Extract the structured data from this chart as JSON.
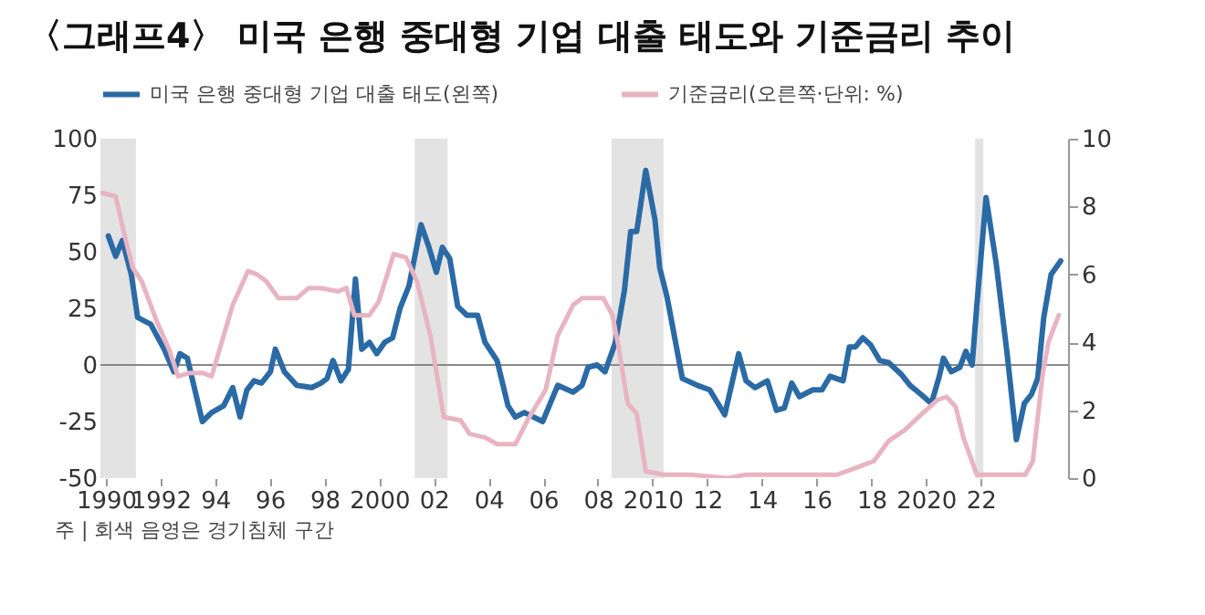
{
  "chart_data": {
    "type": "line",
    "title": "〈그래프4〉 미국 은행 중대형 기업 대출 태도와 기준금리 추이",
    "annotations": [
      "주 | 회색 음영은 경기침체 구간"
    ],
    "xlim": [
      1989.8,
      2025.2
    ],
    "xticks": [
      {
        "value": 1990,
        "label": "1990"
      },
      {
        "value": 1992,
        "label": "1992"
      },
      {
        "value": 1994,
        "label": "94"
      },
      {
        "value": 1996,
        "label": "96"
      },
      {
        "value": 1998,
        "label": "98"
      },
      {
        "value": 2000,
        "label": "2000"
      },
      {
        "value": 2002,
        "label": "02"
      },
      {
        "value": 2004,
        "label": "04"
      },
      {
        "value": 2006,
        "label": "06"
      },
      {
        "value": 2008,
        "label": "08"
      },
      {
        "value": 2010,
        "label": "2010"
      },
      {
        "value": 2012,
        "label": "12"
      },
      {
        "value": 2014,
        "label": "14"
      },
      {
        "value": 2016,
        "label": "16"
      },
      {
        "value": 2018,
        "label": "18"
      },
      {
        "value": 2020,
        "label": "2020"
      },
      {
        "value": 2022,
        "label": "22"
      }
    ],
    "ylim": [
      -50,
      100
    ],
    "yticks": [
      -50,
      -25,
      0,
      25,
      50,
      75,
      100
    ],
    "y2lim": [
      0,
      10
    ],
    "y2ticks": [
      0,
      2,
      4,
      6,
      8,
      10
    ],
    "legend": "top",
    "grid": false,
    "line_style": "solid",
    "ref_lines": [
      {
        "axis": "y",
        "value": 0,
        "color": "#888888"
      }
    ],
    "bands": [
      {
        "axis": "x",
        "from": 1989.8,
        "to": 1991.1,
        "color": "#e3e3e3"
      },
      {
        "axis": "x",
        "from": 2001.3,
        "to": 2002.5,
        "color": "#e3e3e3"
      },
      {
        "axis": "x",
        "from": 2008.5,
        "to": 2010.4,
        "color": "#e3e3e3"
      },
      {
        "axis": "x",
        "from": 2021.8,
        "to": 2022.1,
        "color": "#e3e3e3"
      }
    ],
    "series": [
      {
        "name": "미국 은행 중대형 기업 대출 태도(왼쪽)",
        "color": "#2a6aa5",
        "x": [
          1990.09,
          1990.36,
          1990.6,
          1990.93,
          1991.16,
          1991.64,
          1992.13,
          1992.49,
          1992.71,
          1992.98,
          1993.53,
          1993.87,
          1994.31,
          1994.64,
          1994.91,
          1995.16,
          1995.42,
          1995.69,
          1996.02,
          1996.2,
          1996.53,
          1996.98,
          1997.53,
          1997.87,
          1998.09,
          1998.31,
          1998.6,
          1998.87,
          1999.13,
          1999.36,
          1999.64,
          1999.91,
          2000.2,
          2000.49,
          2000.76,
          2001.09,
          2001.53,
          2001.82,
          2002.09,
          2002.31,
          2002.58,
          2002.87,
          2003.2,
          2003.6,
          2003.87,
          2004.31,
          2004.71,
          2004.98,
          2005.31,
          2005.98,
          2006.53,
          2007.09,
          2007.42,
          2007.64,
          2007.97,
          2008.26,
          2008.64,
          2008.97,
          2009.2,
          2009.42,
          2009.75,
          2010.09,
          2010.26,
          2010.53,
          2011.09,
          2011.64,
          2012.09,
          2012.64,
          2013.15,
          2013.42,
          2013.75,
          2014.2,
          2014.53,
          2014.82,
          2015.09,
          2015.37,
          2015.86,
          2016.2,
          2016.49,
          2016.97,
          2017.2,
          2017.42,
          2017.69,
          2017.97,
          2018.31,
          2018.64,
          2019.09,
          2019.42,
          2019.82,
          2020.2,
          2020.49,
          2020.64,
          2020.93,
          2021.24,
          2021.46,
          2021.69,
          2021.86,
          2022.2,
          2022.57,
          2022.97,
          2023.31,
          2023.6,
          2023.86,
          2024.09,
          2024.31,
          2024.58,
          2024.93
        ],
        "values": [
          57,
          48,
          55,
          40,
          21,
          18,
          7,
          -3,
          5,
          3,
          -25,
          -21,
          -18,
          -10,
          -23,
          -11,
          -7,
          -8,
          -3,
          7,
          -3,
          -9,
          -10,
          -8,
          -6,
          2,
          -7,
          -2,
          38,
          7,
          10,
          5,
          10,
          12,
          25,
          35,
          62,
          52,
          41,
          52,
          47,
          26,
          22,
          22,
          10,
          2,
          -18,
          -23,
          -21,
          -25,
          -9,
          -12,
          -9,
          -1,
          0,
          -3,
          10,
          33,
          59,
          59,
          86,
          64,
          43,
          30,
          -6,
          -9,
          -11,
          -22,
          5,
          -7,
          -10,
          -7,
          -20,
          -19,
          -8,
          -14,
          -11,
          -11,
          -5,
          -7,
          8,
          8,
          12,
          9,
          2,
          1,
          -4,
          -9,
          -13,
          -17,
          -5,
          3,
          -3,
          -1,
          6,
          0,
          26,
          74,
          45,
          5,
          -33,
          -17,
          -13,
          -6,
          21,
          40,
          46
        ]
      },
      {
        "name": "기준금리(오른쪽·단위: %)",
        "color": "#e8b4c4",
        "axis": "y2",
        "x": [
          1989.87,
          1990.36,
          1990.64,
          1990.98,
          1991.31,
          1991.87,
          1992.31,
          1992.64,
          1993.09,
          1993.53,
          1993.87,
          1994.31,
          1994.64,
          1995.2,
          1995.53,
          1995.87,
          1996.31,
          1996.98,
          1997.42,
          1997.87,
          1998.49,
          1998.8,
          1999.09,
          1999.64,
          1999.98,
          2000.53,
          2000.98,
          2001.38,
          2001.87,
          2002.2,
          2002.36,
          2002.98,
          2003.31,
          2003.87,
          2004.31,
          2004.98,
          2005.42,
          2006.09,
          2006.53,
          2007.09,
          2007.42,
          2008.2,
          2008.53,
          2008.75,
          2009.09,
          2009.42,
          2009.75,
          2010.42,
          2011.42,
          2012.75,
          2013.42,
          2014.53,
          2015.42,
          2016.75,
          2017.42,
          2018.09,
          2018.64,
          2019.2,
          2019.86,
          2020.42,
          2020.75,
          2021.09,
          2021.37,
          2021.86,
          2022.53,
          2023.64,
          2023.91,
          2024.26,
          2024.48,
          2024.86
        ],
        "values": [
          8.4,
          8.3,
          7.3,
          6.2,
          5.8,
          4.6,
          3.8,
          3.0,
          3.1,
          3.1,
          3.0,
          4.2,
          5.1,
          6.1,
          6.0,
          5.8,
          5.3,
          5.3,
          5.6,
          5.6,
          5.5,
          5.6,
          4.8,
          4.8,
          5.2,
          6.6,
          6.5,
          5.8,
          4.2,
          2.6,
          1.8,
          1.7,
          1.3,
          1.2,
          1.0,
          1.0,
          1.7,
          2.6,
          4.2,
          5.1,
          5.3,
          5.3,
          4.8,
          3.9,
          2.2,
          1.9,
          0.2,
          0.1,
          0.1,
          0.0,
          0.1,
          0.1,
          0.1,
          0.1,
          0.3,
          0.5,
          1.1,
          1.4,
          1.9,
          2.3,
          2.4,
          2.1,
          1.2,
          0.1,
          0.1,
          0.1,
          0.5,
          3.0,
          4.0,
          4.8
        ]
      }
    ]
  }
}
